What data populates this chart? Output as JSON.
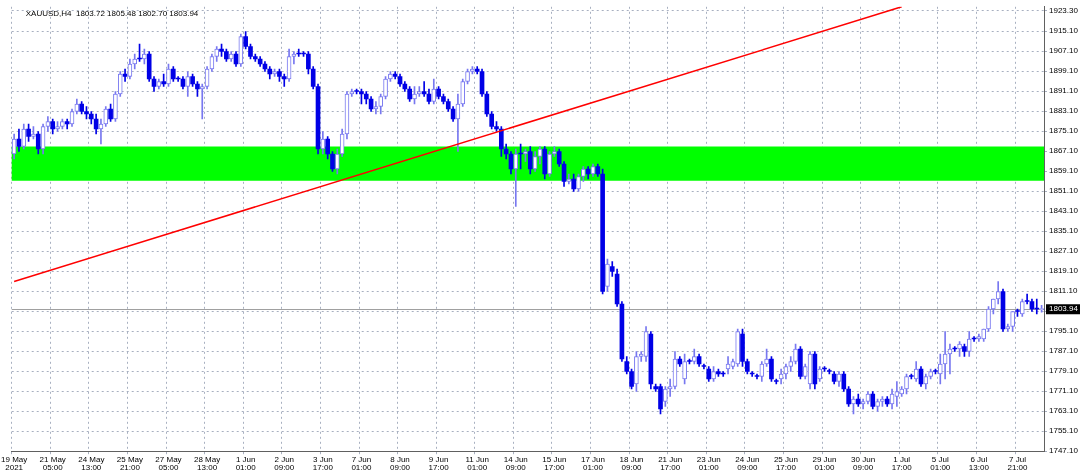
{
  "chart_data": {
    "type": "candlestick",
    "title": "XAUUSD,H4  1803.72 1805.48 1802.70 1803.94",
    "colors": [
      "#7878f0",
      "#0000e6",
      "#7878f0",
      "#0000e6",
      "#7878f0",
      "#0000e6",
      "#7878f0",
      "#7878f0",
      "#0000e6",
      "#7878f0",
      "#7878f0",
      "#0000e6",
      "#7878f0",
      "#7878f0",
      "#0000e6",
      "#0000e6",
      "#0000e6",
      "#0000e6",
      "#7878f0",
      "#7878f0",
      "#0000e6",
      "#7878f0",
      "#7878f0",
      "#0000e6",
      "#7878f0",
      "#7878f0",
      "#0000e6",
      "#7878f0",
      "#0000e6",
      "#0000e6",
      "#7878f0",
      "#0000e6",
      "#7878f0",
      "#0000e6",
      "#0000e6",
      "#0000e6",
      "#7878f0",
      "#0000e6",
      "#0000e6",
      "#7878f0",
      "#7878f0",
      "#7878f0",
      "#7878f0",
      "#0000e6",
      "#0000e6",
      "#7878f0",
      "#0000e6",
      "#7878f0",
      "#0000e6",
      "#0000e6",
      "#0000e6",
      "#0000e6",
      "#0000e6",
      "#0000e6",
      "#7878f0",
      "#0000e6",
      "#0000e6",
      "#7878f0",
      "#7878f0",
      "#0000e6",
      "#0000e6",
      "#0000e6",
      "#0000e6",
      "#0000e6",
      "#7878f0",
      "#0000e6",
      "#0000e6",
      "#7878f0",
      "#7878f0",
      "#7878f0",
      "#7878f0",
      "#0000e6",
      "#0000e6",
      "#0000e6",
      "#0000e6",
      "#7878f0",
      "#7878f0",
      "#7878f0",
      "#7878f0",
      "#0000e6",
      "#0000e6",
      "#0000e6",
      "#0000e6",
      "#7878f0",
      "#7878f0",
      "#0000e6",
      "#0000e6",
      "#7878f0",
      "#0000e6",
      "#0000e6",
      "#0000e6",
      "#0000e6",
      "#7878f0",
      "#7878f0",
      "#7878f0",
      "#7878f0",
      "#0000e6",
      "#0000e6",
      "#0000e6",
      "#0000e6",
      "#0000e6",
      "#0000e6",
      "#0000e6",
      "#0000e6",
      "#7878f0",
      "#0000e6",
      "#7878f0",
      "#0000e6",
      "#7878f0",
      "#7878f0",
      "#0000e6",
      "#7878f0",
      "#7878f0",
      "#0000e6",
      "#0000e6",
      "#7878f0",
      "#0000e6",
      "#7878f0",
      "#7878f0",
      "#0000e6",
      "#7878f0",
      "#0000e6",
      "#0000e6",
      "#7878f0",
      "#0000e6",
      "#0000e6",
      "#0000e6",
      "#0000e6",
      "#0000e6",
      "#7878f0",
      "#7878f0",
      "#7878f0",
      "#0000e6",
      "#0000e6",
      "#0000e6",
      "#7878f0",
      "#7878f0",
      "#7878f0",
      "#0000e6",
      "#7878f0",
      "#0000e6",
      "#7878f0",
      "#0000e6",
      "#0000e6",
      "#0000e6",
      "#7878f0",
      "#0000e6",
      "#0000e6",
      "#7878f0",
      "#7878f0",
      "#7878f0",
      "#0000e6",
      "#0000e6",
      "#0000e6",
      "#0000e6",
      "#7878f0",
      "#7878f0",
      "#0000e6",
      "#0000e6",
      "#7878f0",
      "#7878f0",
      "#7878f0",
      "#7878f0",
      "#0000e6",
      "#7878f0",
      "#7878f0",
      "#0000e6",
      "#7878f0",
      "#0000e6",
      "#0000e6",
      "#0000e6",
      "#7878f0",
      "#0000e6",
      "#0000e6",
      "#7878f0",
      "#0000e6",
      "#7878f0",
      "#7878f0",
      "#0000e6",
      "#7878f0",
      "#7878f0",
      "#0000e6",
      "#7878f0",
      "#7878f0",
      "#7878f0",
      "#7878f0",
      "#0000e6",
      "#7878f0",
      "#0000e6",
      "#7878f0",
      "#7878f0",
      "#0000e6",
      "#7878f0",
      "#7878f0",
      "#7878f0",
      "#0000e6",
      "#7878f0",
      "#0000e6",
      "#7878f0",
      "#0000e6",
      "#7878f0",
      "#7878f0",
      "#7878f0",
      "#7878f0",
      "#7878f0",
      "#0000e6",
      "#7878f0",
      "#7878f0",
      "#0000e6",
      "#7878f0",
      "#0000e6",
      "#0000e6",
      "#0000e6",
      "#7878f0"
    ],
    "grid": true,
    "legend": false,
    "categories": [
      "19 May 2021",
      null,
      null,
      null,
      null,
      null,
      null,
      null,
      "21 May 05:00",
      null,
      null,
      null,
      null,
      null,
      null,
      null,
      "24 May 13:00",
      null,
      null,
      null,
      null,
      null,
      null,
      null,
      "25 May 21:00",
      null,
      null,
      null,
      null,
      null,
      null,
      null,
      "27 May 05:00",
      null,
      null,
      null,
      null,
      null,
      null,
      null,
      "28 May 13:00",
      null,
      null,
      null,
      null,
      null,
      null,
      null,
      "1 Jun 01:00",
      null,
      null,
      null,
      null,
      null,
      null,
      null,
      "2 Jun 09:00",
      null,
      null,
      null,
      null,
      null,
      null,
      null,
      "3 Jun 17:00",
      null,
      null,
      null,
      null,
      null,
      null,
      null,
      "7 Jun 01:00",
      null,
      null,
      null,
      null,
      null,
      null,
      null,
      "8 Jun 09:00",
      null,
      null,
      null,
      null,
      null,
      null,
      null,
      "9 Jun 17:00",
      null,
      null,
      null,
      null,
      null,
      null,
      null,
      "11 Jun 01:00",
      null,
      null,
      null,
      null,
      null,
      null,
      null,
      "14 Jun 09:00",
      null,
      null,
      null,
      null,
      null,
      null,
      null,
      "15 Jun 17:00",
      null,
      null,
      null,
      null,
      null,
      null,
      null,
      "17 Jun 01:00",
      null,
      null,
      null,
      null,
      null,
      null,
      null,
      "18 Jun 09:00",
      null,
      null,
      null,
      null,
      null,
      null,
      null,
      "21 Jun 17:00",
      null,
      null,
      null,
      null,
      null,
      null,
      null,
      "23 Jun 01:00",
      null,
      null,
      null,
      null,
      null,
      null,
      null,
      "24 Jun 09:00",
      null,
      null,
      null,
      null,
      null,
      null,
      null,
      "25 Jun 17:00",
      null,
      null,
      null,
      null,
      null,
      null,
      null,
      "29 Jun 01:00",
      null,
      null,
      null,
      null,
      null,
      null,
      null,
      "30 Jun 09:00",
      null,
      null,
      null,
      null,
      null,
      null,
      null,
      "1 Jul 17:00",
      null,
      null,
      null,
      null,
      null,
      null,
      null,
      "5 Jul 01:00",
      null,
      null,
      null,
      null,
      null,
      null,
      null,
      "6 Jul 13:00",
      null,
      null,
      null,
      null,
      null,
      null,
      null,
      "7 Jul 21:00",
      null,
      null,
      null,
      null,
      null
    ],
    "ohlc": [
      [
        1866,
        1874,
        1864,
        1872
      ],
      [
        1872,
        1876,
        1867,
        1869
      ],
      [
        1869,
        1878,
        1868,
        1876
      ],
      [
        1876,
        1878,
        1871,
        1873
      ],
      [
        1873,
        1877,
        1872,
        1874
      ],
      [
        1874,
        1875,
        1866,
        1868
      ],
      [
        1868,
        1878,
        1866,
        1877
      ],
      [
        1877,
        1881,
        1875,
        1879
      ],
      [
        1879,
        1880,
        1874,
        1876
      ],
      [
        1876,
        1879,
        1875,
        1877
      ],
      [
        1877,
        1880,
        1876,
        1879
      ],
      [
        1879,
        1880,
        1876,
        1878
      ],
      [
        1878,
        1884,
        1877,
        1883
      ],
      [
        1883,
        1888,
        1882,
        1886
      ],
      [
        1886,
        1887,
        1882,
        1883
      ],
      [
        1883,
        1885,
        1880,
        1882
      ],
      [
        1882,
        1883,
        1878,
        1880
      ],
      [
        1880,
        1882,
        1874,
        1876
      ],
      [
        1876,
        1880,
        1870,
        1878
      ],
      [
        1878,
        1885,
        1877,
        1884
      ],
      [
        1884,
        1886,
        1879,
        1880
      ],
      [
        1880,
        1891,
        1879,
        1890
      ],
      [
        1890,
        1899,
        1889,
        1898
      ],
      [
        1898,
        1900,
        1895,
        1897
      ],
      [
        1897,
        1904,
        1896,
        1902
      ],
      [
        1902,
        1906,
        1900,
        1904
      ],
      [
        1904,
        1910,
        1903,
        1904
      ],
      [
        1904,
        1908,
        1902,
        1906
      ],
      [
        1906,
        1907,
        1895,
        1896
      ],
      [
        1896,
        1897,
        1891,
        1893
      ],
      [
        1893,
        1896,
        1892,
        1895
      ],
      [
        1895,
        1898,
        1893,
        1894
      ],
      [
        1894,
        1902,
        1893,
        1900
      ],
      [
        1900,
        1901,
        1895,
        1896
      ],
      [
        1896,
        1897,
        1895,
        1896
      ],
      [
        1896,
        1897,
        1892,
        1893
      ],
      [
        1893,
        1899,
        1889,
        1897
      ],
      [
        1897,
        1898,
        1893,
        1894
      ],
      [
        1894,
        1895,
        1889,
        1892
      ],
      [
        1892,
        1894,
        1880,
        1893
      ],
      [
        1893,
        1901,
        1892,
        1900
      ],
      [
        1900,
        1906,
        1899,
        1905
      ],
      [
        1905,
        1909,
        1903,
        1908
      ],
      [
        1908,
        1910,
        1905,
        1907
      ],
      [
        1907,
        1908,
        1903,
        1904
      ],
      [
        1904,
        1907,
        1903,
        1906
      ],
      [
        1906,
        1907,
        1901,
        1902
      ],
      [
        1902,
        1914,
        1901,
        1913
      ],
      [
        1913,
        1915,
        1908,
        1909
      ],
      [
        1909,
        1910,
        1904,
        1905
      ],
      [
        1905,
        1906,
        1903,
        1904
      ],
      [
        1904,
        1905,
        1901,
        1902
      ],
      [
        1902,
        1903,
        1899,
        1900
      ],
      [
        1900,
        1901,
        1896,
        1898
      ],
      [
        1898,
        1900,
        1897,
        1899
      ],
      [
        1899,
        1900,
        1895,
        1897
      ],
      [
        1897,
        1898,
        1893,
        1896
      ],
      [
        1896,
        1908,
        1895,
        1905
      ],
      [
        1905,
        1907,
        1902,
        1906
      ],
      [
        1906,
        1908,
        1905,
        1906
      ],
      [
        1906,
        1907,
        1905,
        1906
      ],
      [
        1906,
        1907,
        1898,
        1900
      ],
      [
        1900,
        1901,
        1892,
        1893
      ],
      [
        1893,
        1894,
        1866,
        1868
      ],
      [
        1868,
        1875,
        1866,
        1872
      ],
      [
        1872,
        1873,
        1864,
        1866
      ],
      [
        1866,
        1867,
        1859,
        1860
      ],
      [
        1860,
        1868,
        1858,
        1866
      ],
      [
        1866,
        1876,
        1865,
        1874
      ],
      [
        1874,
        1891,
        1872,
        1890
      ],
      [
        1890,
        1892,
        1889,
        1891
      ],
      [
        1891,
        1892,
        1890,
        1891
      ],
      [
        1891,
        1892,
        1886,
        1890
      ],
      [
        1890,
        1891,
        1886,
        1888
      ],
      [
        1888,
        1889,
        1883,
        1884
      ],
      [
        1884,
        1887,
        1882,
        1885
      ],
      [
        1885,
        1890,
        1882,
        1889
      ],
      [
        1889,
        1897,
        1888,
        1896
      ],
      [
        1896,
        1899,
        1895,
        1898
      ],
      [
        1898,
        1899,
        1896,
        1897
      ],
      [
        1897,
        1898,
        1893,
        1894
      ],
      [
        1894,
        1895,
        1891,
        1892
      ],
      [
        1892,
        1893,
        1887,
        1888
      ],
      [
        1888,
        1893,
        1886,
        1890
      ],
      [
        1890,
        1893,
        1889,
        1891
      ],
      [
        1891,
        1895,
        1889,
        1890
      ],
      [
        1890,
        1892,
        1886,
        1887
      ],
      [
        1887,
        1896,
        1886,
        1892
      ],
      [
        1892,
        1893,
        1888,
        1889
      ],
      [
        1889,
        1890,
        1886,
        1887
      ],
      [
        1887,
        1888,
        1883,
        1884
      ],
      [
        1884,
        1885,
        1879,
        1880
      ],
      [
        1880,
        1890,
        1867,
        1886
      ],
      [
        1886,
        1896,
        1885,
        1895
      ],
      [
        1895,
        1900,
        1894,
        1899
      ],
      [
        1899,
        1901,
        1898,
        1900
      ],
      [
        1900,
        1901,
        1898,
        1899
      ],
      [
        1899,
        1900,
        1889,
        1890
      ],
      [
        1890,
        1891,
        1881,
        1882
      ],
      [
        1882,
        1883,
        1876,
        1877
      ],
      [
        1877,
        1879,
        1875,
        1876
      ],
      [
        1876,
        1877,
        1865,
        1868
      ],
      [
        1868,
        1870,
        1864,
        1866
      ],
      [
        1866,
        1867,
        1858,
        1860
      ],
      [
        1860,
        1868,
        1845,
        1866
      ],
      [
        1866,
        1870,
        1860,
        1866
      ],
      [
        1866,
        1868,
        1863,
        1867
      ],
      [
        1867,
        1869,
        1858,
        1860
      ],
      [
        1860,
        1867,
        1859,
        1865
      ],
      [
        1865,
        1869,
        1862,
        1868
      ],
      [
        1868,
        1869,
        1856,
        1858
      ],
      [
        1858,
        1867,
        1857,
        1866
      ],
      [
        1866,
        1869,
        1865,
        1867
      ],
      [
        1867,
        1868,
        1861,
        1862
      ],
      [
        1862,
        1863,
        1853,
        1855
      ],
      [
        1855,
        1858,
        1854,
        1856
      ],
      [
        1856,
        1858,
        1851,
        1852
      ],
      [
        1852,
        1858,
        1851,
        1857
      ],
      [
        1857,
        1861,
        1855,
        1860
      ],
      [
        1860,
        1861,
        1856,
        1858
      ],
      [
        1858,
        1862,
        1857,
        1861
      ],
      [
        1861,
        1862,
        1857,
        1858
      ],
      [
        1858,
        1860,
        1810,
        1811
      ],
      [
        1813,
        1824,
        1811,
        1822
      ],
      [
        1821,
        1823,
        1817,
        1819
      ],
      [
        1818,
        1820,
        1805,
        1806
      ],
      [
        1806,
        1807,
        1783,
        1784
      ],
      [
        1783,
        1785,
        1778,
        1779
      ],
      [
        1779,
        1780,
        1772,
        1773
      ],
      [
        1774,
        1787,
        1771,
        1785
      ],
      [
        1785,
        1787,
        1783,
        1786
      ],
      [
        1785,
        1797,
        1783,
        1795
      ],
      [
        1794,
        1795,
        1772,
        1774
      ],
      [
        1773,
        1774,
        1771,
        1772
      ],
      [
        1773,
        1774,
        1762,
        1764
      ],
      [
        1767,
        1773,
        1765,
        1772
      ],
      [
        1772,
        1776,
        1769,
        1773
      ],
      [
        1773,
        1787,
        1772,
        1784
      ],
      [
        1784,
        1785,
        1781,
        1782
      ],
      [
        1776,
        1786,
        1774,
        1783
      ],
      [
        1783,
        1784,
        1782,
        1783
      ],
      [
        1783,
        1788,
        1782,
        1785
      ],
      [
        1785,
        1786,
        1781,
        1782
      ],
      [
        1781,
        1782,
        1780,
        1781
      ],
      [
        1780,
        1781,
        1775,
        1776
      ],
      [
        1776,
        1781,
        1775,
        1779
      ],
      [
        1779,
        1780,
        1777,
        1778
      ],
      [
        1778,
        1779,
        1777,
        1778
      ],
      [
        1780,
        1785,
        1778,
        1782
      ],
      [
        1781,
        1784,
        1780,
        1783
      ],
      [
        1782,
        1796,
        1781,
        1795
      ],
      [
        1794,
        1796,
        1781,
        1783
      ],
      [
        1783,
        1784,
        1778,
        1779
      ],
      [
        1778,
        1779,
        1777,
        1778
      ],
      [
        1777,
        1778,
        1776,
        1777
      ],
      [
        1777,
        1783,
        1775,
        1782
      ],
      [
        1782,
        1788,
        1781,
        1784
      ],
      [
        1784,
        1785,
        1775,
        1776
      ],
      [
        1775,
        1776,
        1774,
        1775
      ],
      [
        1776,
        1780,
        1774,
        1778
      ],
      [
        1778,
        1782,
        1776,
        1781
      ],
      [
        1781,
        1785,
        1779,
        1783
      ],
      [
        1783,
        1790,
        1782,
        1788
      ],
      [
        1788,
        1789,
        1776,
        1777
      ],
      [
        1777,
        1782,
        1776,
        1781
      ],
      [
        1774,
        1787,
        1772,
        1786
      ],
      [
        1786,
        1787,
        1772,
        1774
      ],
      [
        1776,
        1781,
        1775,
        1780
      ],
      [
        1780,
        1781,
        1779,
        1780
      ],
      [
        1779,
        1780,
        1778,
        1779
      ],
      [
        1778,
        1779,
        1774,
        1775
      ],
      [
        1775,
        1779,
        1773,
        1778
      ],
      [
        1778,
        1779,
        1771,
        1772
      ],
      [
        1772,
        1773,
        1765,
        1766
      ],
      [
        1766,
        1769,
        1762,
        1768
      ],
      [
        1768,
        1770,
        1765,
        1766
      ],
      [
        1766,
        1768,
        1764,
        1767
      ],
      [
        1767,
        1771,
        1766,
        1770
      ],
      [
        1770,
        1771,
        1764,
        1765
      ],
      [
        1765,
        1768,
        1763,
        1767
      ],
      [
        1767,
        1769,
        1765,
        1768
      ],
      [
        1768,
        1769,
        1765,
        1766
      ],
      [
        1766,
        1772,
        1764,
        1770
      ],
      [
        1769,
        1775,
        1765,
        1771
      ],
      [
        1770,
        1773,
        1769,
        1772
      ],
      [
        1772,
        1778,
        1770,
        1777
      ],
      [
        1777,
        1778,
        1776,
        1777
      ],
      [
        1776,
        1783,
        1775,
        1780
      ],
      [
        1780,
        1781,
        1773,
        1774
      ],
      [
        1774,
        1778,
        1772,
        1777
      ],
      [
        1777,
        1780,
        1776,
        1779
      ],
      [
        1779,
        1780,
        1778,
        1779
      ],
      [
        1778,
        1786,
        1774,
        1782
      ],
      [
        1782,
        1795,
        1776,
        1786
      ],
      [
        1786,
        1790,
        1778,
        1788
      ],
      [
        1788,
        1789,
        1787,
        1788
      ],
      [
        1788,
        1791,
        1785,
        1790
      ],
      [
        1789,
        1790,
        1785,
        1787
      ],
      [
        1787,
        1795,
        1785,
        1792
      ],
      [
        1792,
        1793,
        1791,
        1792
      ],
      [
        1792,
        1794,
        1791,
        1793
      ],
      [
        1792,
        1796,
        1791,
        1796
      ],
      [
        1796,
        1805,
        1795,
        1804
      ],
      [
        1804,
        1808,
        1802,
        1808
      ],
      [
        1808,
        1815,
        1806,
        1811
      ],
      [
        1811,
        1812,
        1795,
        1796
      ],
      [
        1796,
        1798,
        1795,
        1797
      ],
      [
        1797,
        1803,
        1795,
        1803
      ],
      [
        1803,
        1804,
        1801,
        1803
      ],
      [
        1802,
        1808,
        1801,
        1807
      ],
      [
        1807,
        1810,
        1806,
        1807
      ],
      [
        1807,
        1808,
        1803,
        1804
      ],
      [
        1804,
        1808,
        1802,
        1804
      ],
      [
        1803.72,
        1805.48,
        1802.7,
        1803.94
      ]
    ],
    "series": [
      {
        "type": "line",
        "color": "#ff0000",
        "x": [
          "19 May 2021",
          "1 Jul 17:00"
        ],
        "values": [
          1815,
          1924.9
        ]
      }
    ],
    "ylim": [
      1747.1,
      1924.9
    ],
    "yticks": [
      {
        "value": 1747.1,
        "label": "1747.10"
      },
      {
        "value": 1755.1,
        "label": "1755.10"
      },
      {
        "value": 1763.1,
        "label": "1763.10"
      },
      {
        "value": 1771.1,
        "label": "1771.10"
      },
      {
        "value": 1779.1,
        "label": "1779.10"
      },
      {
        "value": 1787.1,
        "label": "1787.10"
      },
      {
        "value": 1795.1,
        "label": "1795.10"
      },
      {
        "value": 1803.1,
        "label": null
      },
      {
        "value": 1811.1,
        "label": "1811.10"
      },
      {
        "value": 1819.1,
        "label": "1819.10"
      },
      {
        "value": 1827.1,
        "label": "1827.10"
      },
      {
        "value": 1835.1,
        "label": "1835.10"
      },
      {
        "value": 1843.1,
        "label": "1843.10"
      },
      {
        "value": 1851.1,
        "label": "1851.10"
      },
      {
        "value": 1859.1,
        "label": "1859.10"
      },
      {
        "value": 1867.1,
        "label": "1867.10"
      },
      {
        "value": 1875.1,
        "label": "1875.10"
      },
      {
        "value": 1883.1,
        "label": "1883.10"
      },
      {
        "value": 1891.1,
        "label": "1891.10"
      },
      {
        "value": 1899.1,
        "label": "1899.10"
      },
      {
        "value": 1907.1,
        "label": "1907.10"
      },
      {
        "value": 1915.1,
        "label": "1915.10"
      },
      {
        "value": 1923.3,
        "label": "1923.30"
      }
    ],
    "bands": [
      {
        "axis": "y",
        "from": 1855.3,
        "to": 1869,
        "color": "#00ff00"
      }
    ],
    "ref_lines": [
      {
        "axis": "y",
        "value": 1803.94,
        "label": "1803.94",
        "color": "#a0a0a0"
      }
    ]
  }
}
